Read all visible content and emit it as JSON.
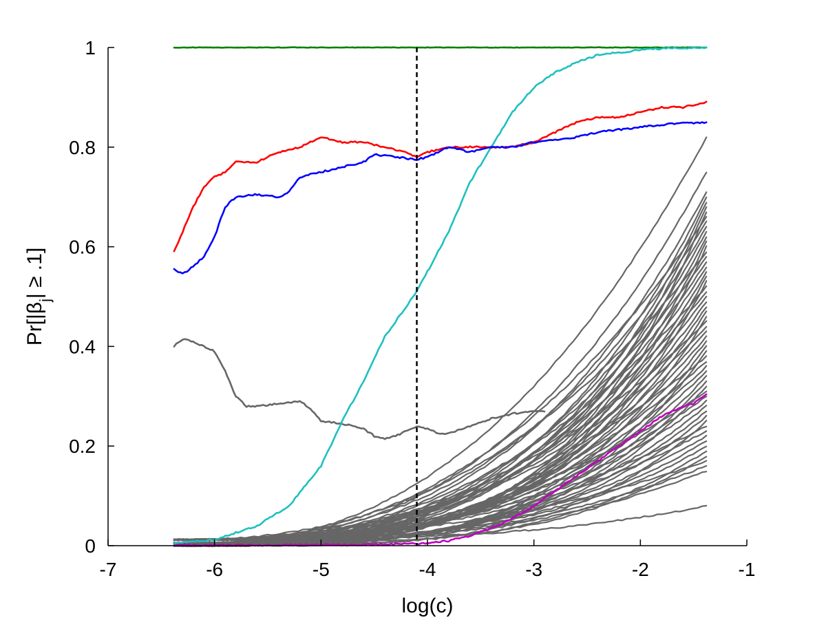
{
  "chart_data": {
    "type": "line",
    "title": "",
    "xlabel": "log(c)",
    "ylabel": "Pr[|βj| ≥ .1]",
    "ylabel_parts": {
      "pre": "Pr[|",
      "beta": "β",
      "sub": "j",
      "post": "| ≥ .1]"
    },
    "xlim": [
      -7,
      -1
    ],
    "ylim": [
      0,
      1
    ],
    "x_ticks": [
      -7,
      -6,
      -5,
      -4,
      -3,
      -2,
      -1
    ],
    "x_tick_labels": [
      "-7",
      "-6",
      "-5",
      "-4",
      "-3",
      "-2",
      "-1"
    ],
    "y_ticks": [
      0,
      0.2,
      0.4,
      0.6,
      0.8,
      1
    ],
    "y_tick_labels": [
      "0",
      "0.2",
      "0.4",
      "0.6",
      "0.8",
      "1"
    ],
    "grid": false,
    "vertical_line": {
      "x": -4.1,
      "style": "dashed",
      "color": "#000000"
    },
    "colors": {
      "green": "#008000",
      "cyan": "#1fbfbf",
      "red": "#ff0000",
      "blue": "#0000ff",
      "magenta": "#bf00bf",
      "grey": "#666666"
    },
    "series": [
      {
        "color": "#008000",
        "points": [
          [
            -6.38,
            1.0
          ],
          [
            -1.38,
            1.0
          ]
        ]
      },
      {
        "color": "#1fbfbf",
        "points": [
          [
            -6.38,
            0.005
          ],
          [
            -6.0,
            0.012
          ],
          [
            -5.6,
            0.04
          ],
          [
            -5.3,
            0.08
          ],
          [
            -5.0,
            0.16
          ],
          [
            -4.8,
            0.25
          ],
          [
            -4.6,
            0.33
          ],
          [
            -4.4,
            0.42
          ],
          [
            -4.2,
            0.48
          ],
          [
            -4.1,
            0.51
          ],
          [
            -4.0,
            0.55
          ],
          [
            -3.8,
            0.63
          ],
          [
            -3.6,
            0.73
          ],
          [
            -3.4,
            0.8
          ],
          [
            -3.2,
            0.87
          ],
          [
            -3.0,
            0.92
          ],
          [
            -2.8,
            0.95
          ],
          [
            -2.6,
            0.97
          ],
          [
            -2.4,
            0.985
          ],
          [
            -2.2,
            0.99
          ],
          [
            -2.0,
            0.995
          ],
          [
            -1.8,
            0.998
          ],
          [
            -1.38,
            1.0
          ]
        ]
      },
      {
        "color": "#ff0000",
        "points": [
          [
            -6.38,
            0.59
          ],
          [
            -6.3,
            0.63
          ],
          [
            -6.2,
            0.68
          ],
          [
            -6.1,
            0.72
          ],
          [
            -6.0,
            0.74
          ],
          [
            -5.9,
            0.75
          ],
          [
            -5.8,
            0.77
          ],
          [
            -5.6,
            0.77
          ],
          [
            -5.4,
            0.79
          ],
          [
            -5.2,
            0.8
          ],
          [
            -5.0,
            0.82
          ],
          [
            -4.8,
            0.81
          ],
          [
            -4.6,
            0.81
          ],
          [
            -4.4,
            0.8
          ],
          [
            -4.2,
            0.79
          ],
          [
            -4.1,
            0.78
          ],
          [
            -4.0,
            0.79
          ],
          [
            -3.8,
            0.8
          ],
          [
            -3.6,
            0.8
          ],
          [
            -3.4,
            0.8
          ],
          [
            -3.2,
            0.8
          ],
          [
            -3.0,
            0.81
          ],
          [
            -2.8,
            0.83
          ],
          [
            -2.6,
            0.85
          ],
          [
            -2.4,
            0.86
          ],
          [
            -2.2,
            0.86
          ],
          [
            -2.0,
            0.87
          ],
          [
            -1.8,
            0.88
          ],
          [
            -1.6,
            0.88
          ],
          [
            -1.38,
            0.89
          ]
        ]
      },
      {
        "color": "#0000ff",
        "points": [
          [
            -6.38,
            0.555
          ],
          [
            -6.3,
            0.545
          ],
          [
            -6.2,
            0.56
          ],
          [
            -6.1,
            0.58
          ],
          [
            -6.0,
            0.62
          ],
          [
            -5.9,
            0.68
          ],
          [
            -5.8,
            0.7
          ],
          [
            -5.6,
            0.705
          ],
          [
            -5.4,
            0.7
          ],
          [
            -5.3,
            0.71
          ],
          [
            -5.2,
            0.74
          ],
          [
            -5.0,
            0.75
          ],
          [
            -4.8,
            0.76
          ],
          [
            -4.6,
            0.77
          ],
          [
            -4.5,
            0.785
          ],
          [
            -4.3,
            0.78
          ],
          [
            -4.1,
            0.775
          ],
          [
            -4.0,
            0.78
          ],
          [
            -3.8,
            0.8
          ],
          [
            -3.6,
            0.79
          ],
          [
            -3.4,
            0.8
          ],
          [
            -3.2,
            0.8
          ],
          [
            -3.0,
            0.81
          ],
          [
            -2.8,
            0.815
          ],
          [
            -2.6,
            0.82
          ],
          [
            -2.4,
            0.83
          ],
          [
            -2.2,
            0.835
          ],
          [
            -2.0,
            0.84
          ],
          [
            -1.8,
            0.845
          ],
          [
            -1.6,
            0.848
          ],
          [
            -1.38,
            0.85
          ]
        ]
      },
      {
        "color": "#bf00bf",
        "points": [
          [
            -6.38,
            0.001
          ],
          [
            -5.5,
            0.001
          ],
          [
            -4.5,
            0.002
          ],
          [
            -4.1,
            0.004
          ],
          [
            -3.8,
            0.01
          ],
          [
            -3.6,
            0.02
          ],
          [
            -3.4,
            0.035
          ],
          [
            -3.2,
            0.055
          ],
          [
            -3.0,
            0.08
          ],
          [
            -2.8,
            0.11
          ],
          [
            -2.6,
            0.14
          ],
          [
            -2.4,
            0.17
          ],
          [
            -2.2,
            0.2
          ],
          [
            -2.0,
            0.23
          ],
          [
            -1.8,
            0.26
          ],
          [
            -1.6,
            0.28
          ],
          [
            -1.5,
            0.285
          ],
          [
            -1.38,
            0.305
          ]
        ]
      },
      {
        "color": "#666666",
        "points": [
          [
            -6.38,
            0.4
          ],
          [
            -6.3,
            0.415
          ],
          [
            -6.2,
            0.41
          ],
          [
            -6.0,
            0.39
          ],
          [
            -5.9,
            0.35
          ],
          [
            -5.8,
            0.3
          ],
          [
            -5.7,
            0.28
          ],
          [
            -5.6,
            0.28
          ],
          [
            -5.4,
            0.285
          ],
          [
            -5.2,
            0.29
          ],
          [
            -5.1,
            0.275
          ],
          [
            -5.0,
            0.25
          ],
          [
            -4.8,
            0.245
          ],
          [
            -4.6,
            0.235
          ],
          [
            -4.5,
            0.22
          ],
          [
            -4.4,
            0.215
          ],
          [
            -4.3,
            0.22
          ],
          [
            -4.2,
            0.23
          ],
          [
            -4.1,
            0.24
          ],
          [
            -4.0,
            0.235
          ],
          [
            -3.9,
            0.225
          ],
          [
            -3.8,
            0.225
          ],
          [
            -3.6,
            0.24
          ],
          [
            -3.4,
            0.255
          ],
          [
            -3.2,
            0.265
          ],
          [
            -3.0,
            0.27
          ],
          [
            -2.9,
            0.27
          ]
        ]
      }
    ],
    "grey_bundle": {
      "color": "#666666",
      "x_start": -6.38,
      "x_end": -1.38,
      "start_values": [
        0.0,
        0.005,
        0.012
      ],
      "end_values": [
        0.82,
        0.75,
        0.71,
        0.7,
        0.69,
        0.68,
        0.67,
        0.66,
        0.65,
        0.64,
        0.63,
        0.62,
        0.61,
        0.6,
        0.59,
        0.58,
        0.57,
        0.56,
        0.55,
        0.54,
        0.53,
        0.52,
        0.51,
        0.5,
        0.49,
        0.48,
        0.47,
        0.46,
        0.45,
        0.44,
        0.43,
        0.42,
        0.41,
        0.4,
        0.39,
        0.38,
        0.37,
        0.36,
        0.35,
        0.34,
        0.33,
        0.32,
        0.31,
        0.3,
        0.29,
        0.28,
        0.27,
        0.26,
        0.25,
        0.24,
        0.23,
        0.22,
        0.21,
        0.2,
        0.19,
        0.18,
        0.17,
        0.16,
        0.15,
        0.08
      ]
    }
  }
}
